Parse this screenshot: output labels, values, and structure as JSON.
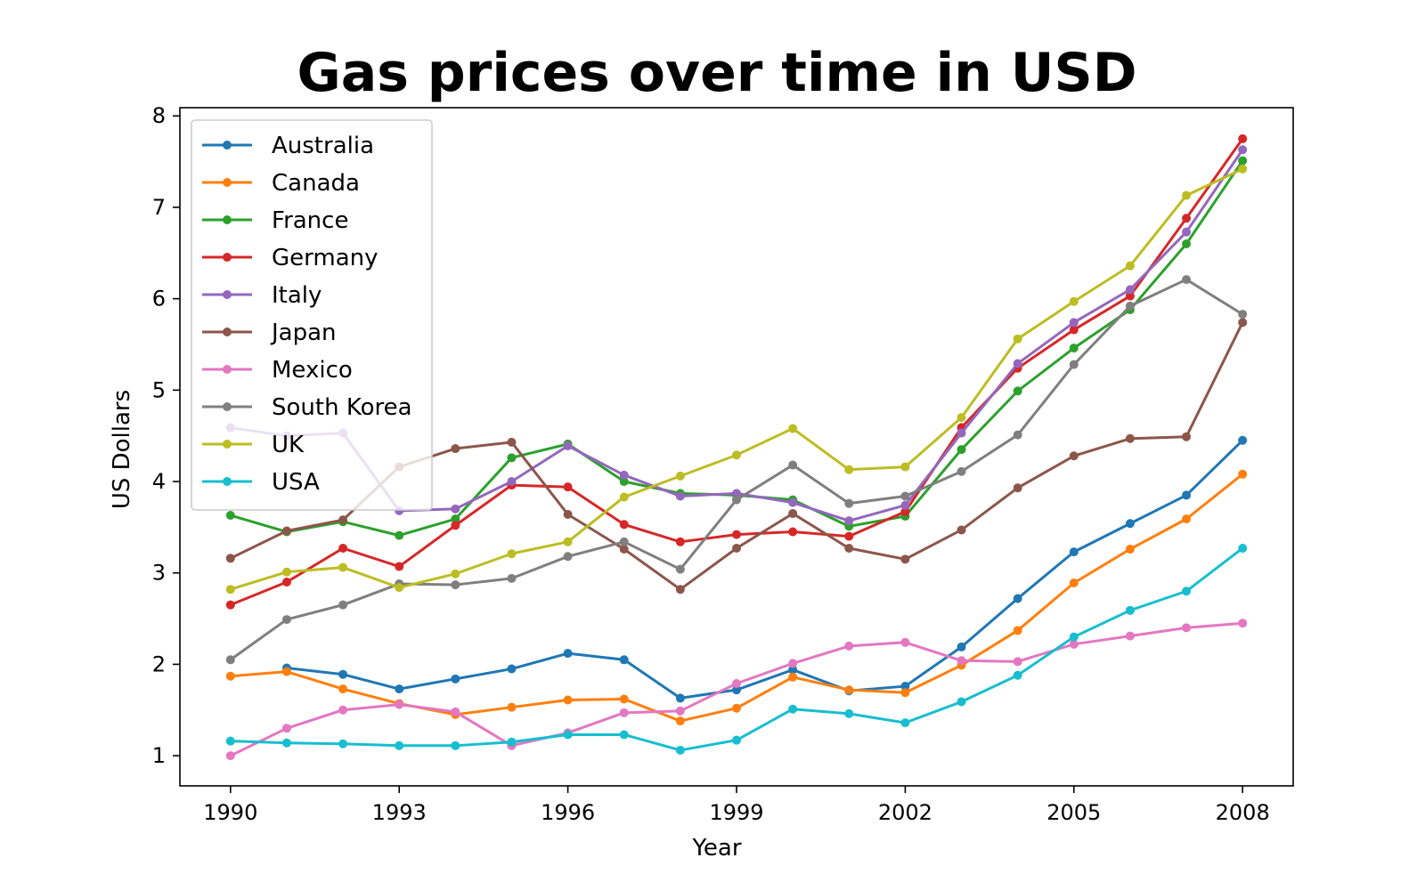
{
  "chart_data": {
    "type": "line",
    "title": "Gas prices over time in USD",
    "xlabel": "Year",
    "ylabel": "US Dollars",
    "xlim": [
      1989.1,
      2008.9
    ],
    "ylim": [
      0.67,
      8.09
    ],
    "xticks": [
      1990,
      1993,
      1996,
      1999,
      2002,
      2005,
      2008
    ],
    "yticks": [
      1,
      2,
      3,
      4,
      5,
      6,
      7,
      8
    ],
    "grid": false,
    "legend_position": "top-left",
    "x": [
      1990,
      1991,
      1992,
      1993,
      1994,
      1995,
      1996,
      1997,
      1998,
      1999,
      2000,
      2001,
      2002,
      2003,
      2004,
      2005,
      2006,
      2007,
      2008
    ],
    "series": [
      {
        "name": "Australia",
        "color": "#1f77b4",
        "values": [
          null,
          1.96,
          1.89,
          1.73,
          1.84,
          1.95,
          2.12,
          2.05,
          1.63,
          1.72,
          1.94,
          1.71,
          1.76,
          2.19,
          2.72,
          3.23,
          3.54,
          3.85,
          4.45
        ]
      },
      {
        "name": "Canada",
        "color": "#ff7f0e",
        "values": [
          1.87,
          1.92,
          1.73,
          1.57,
          1.45,
          1.53,
          1.61,
          1.62,
          1.38,
          1.52,
          1.86,
          1.72,
          1.69,
          1.99,
          2.37,
          2.89,
          3.26,
          3.59,
          4.08
        ]
      },
      {
        "name": "France",
        "color": "#2ca02c",
        "values": [
          3.63,
          3.45,
          3.56,
          3.41,
          3.59,
          4.26,
          4.41,
          4.0,
          3.87,
          3.85,
          3.8,
          3.51,
          3.62,
          4.35,
          4.99,
          5.46,
          5.88,
          6.6,
          7.51
        ]
      },
      {
        "name": "Germany",
        "color": "#d62728",
        "values": [
          2.65,
          2.9,
          3.27,
          3.07,
          3.52,
          3.96,
          3.94,
          3.53,
          3.34,
          3.42,
          3.45,
          3.4,
          3.67,
          4.59,
          5.24,
          5.66,
          6.03,
          6.88,
          7.75
        ]
      },
      {
        "name": "Italy",
        "color": "#9467bd",
        "values": [
          4.59,
          4.5,
          4.53,
          3.68,
          3.7,
          4.0,
          4.39,
          4.07,
          3.84,
          3.87,
          3.77,
          3.57,
          3.74,
          4.53,
          5.29,
          5.74,
          6.1,
          6.73,
          7.63
        ]
      },
      {
        "name": "Japan",
        "color": "#8c564b",
        "values": [
          3.16,
          3.46,
          3.58,
          4.16,
          4.36,
          4.43,
          3.64,
          3.26,
          2.82,
          3.27,
          3.65,
          3.27,
          3.15,
          3.47,
          3.93,
          4.28,
          4.47,
          4.49,
          5.74
        ]
      },
      {
        "name": "Mexico",
        "color": "#e377c2",
        "values": [
          1.0,
          1.3,
          1.5,
          1.56,
          1.48,
          1.11,
          1.25,
          1.47,
          1.49,
          1.79,
          2.01,
          2.2,
          2.24,
          2.04,
          2.03,
          2.22,
          2.31,
          2.4,
          2.45
        ]
      },
      {
        "name": "South Korea",
        "color": "#7f7f7f",
        "values": [
          2.05,
          2.49,
          2.65,
          2.88,
          2.87,
          2.94,
          3.18,
          3.34,
          3.04,
          3.8,
          4.18,
          3.76,
          3.84,
          4.11,
          4.51,
          5.28,
          5.92,
          6.21,
          5.83
        ]
      },
      {
        "name": "UK",
        "color": "#bcbd22",
        "values": [
          2.82,
          3.01,
          3.06,
          2.84,
          2.99,
          3.21,
          3.34,
          3.83,
          4.06,
          4.29,
          4.58,
          4.13,
          4.16,
          4.7,
          5.56,
          5.97,
          6.36,
          7.13,
          7.42
        ]
      },
      {
        "name": "USA",
        "color": "#17becf",
        "values": [
          1.16,
          1.14,
          1.13,
          1.11,
          1.11,
          1.15,
          1.23,
          1.23,
          1.06,
          1.17,
          1.51,
          1.46,
          1.36,
          1.59,
          1.88,
          2.3,
          2.59,
          2.8,
          3.27
        ]
      }
    ]
  }
}
